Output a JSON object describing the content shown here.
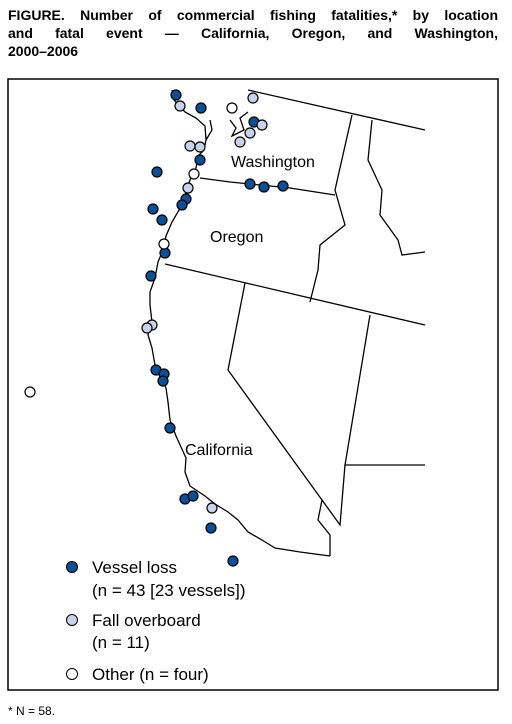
{
  "title_lines": [
    "FIGURE. Number of commercial fishing fatalities,* by location",
    "and fatal event — California, Oregon, and Washington,",
    "2000–2006"
  ],
  "map": {
    "state_labels": [
      "Washington",
      "Oregon",
      "California"
    ]
  },
  "legend": {
    "items": [
      {
        "lines": [
          "Vessel loss",
          "(n = 43 [23 vessels])"
        ]
      },
      {
        "lines": [
          "Fall overboard",
          "(n = 11)"
        ]
      },
      {
        "lines": [
          "Other (n = four)"
        ]
      }
    ]
  },
  "footnote": "* N = 58."
}
